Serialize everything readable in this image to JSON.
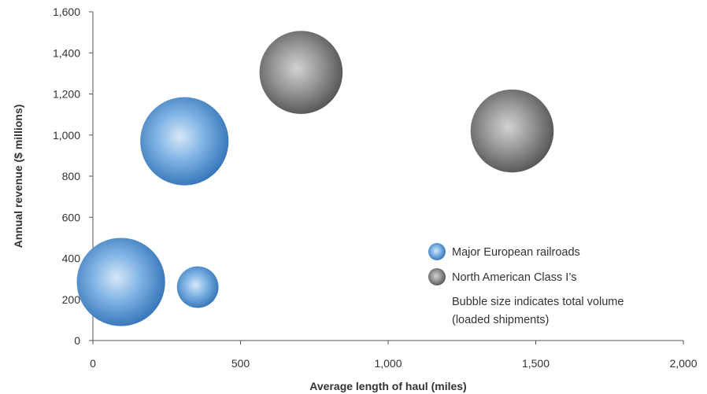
{
  "chart_data": {
    "type": "bubble",
    "xlabel": "Average length of haul (miles)",
    "ylabel": "Annual revenue ($ millions)",
    "xlim": [
      0,
      2000
    ],
    "ylim": [
      0,
      1600
    ],
    "xticks": [
      0,
      500,
      1000,
      1500,
      2000
    ],
    "xtick_labels": [
      "0",
      "500",
      "1,000",
      "1,500",
      "2,000"
    ],
    "yticks": [
      0,
      200,
      400,
      600,
      800,
      1000,
      1200,
      1400,
      1600
    ],
    "ytick_labels": [
      "0",
      "200",
      "400",
      "600",
      "800",
      "1,000",
      "1,200",
      "1,400",
      "1,600"
    ],
    "grid": false,
    "legend_position": "bottom-right",
    "series": [
      {
        "name": "Major European railroads",
        "color": "#4a8fd0",
        "points": [
          {
            "x": 310,
            "y": 970,
            "size": 3.4
          },
          {
            "x": 95,
            "y": 285,
            "size": 3.4
          },
          {
            "x": 355,
            "y": 260,
            "size": 1.6
          }
        ]
      },
      {
        "name": "North American Class I’s",
        "color": "#6e6e6e",
        "points": [
          {
            "x": 705,
            "y": 1305,
            "size": 3.2
          },
          {
            "x": 1420,
            "y": 1020,
            "size": 3.2
          }
        ]
      }
    ],
    "annotation": [
      "Bubble size indicates total volume",
      "(loaded shipments)"
    ]
  }
}
